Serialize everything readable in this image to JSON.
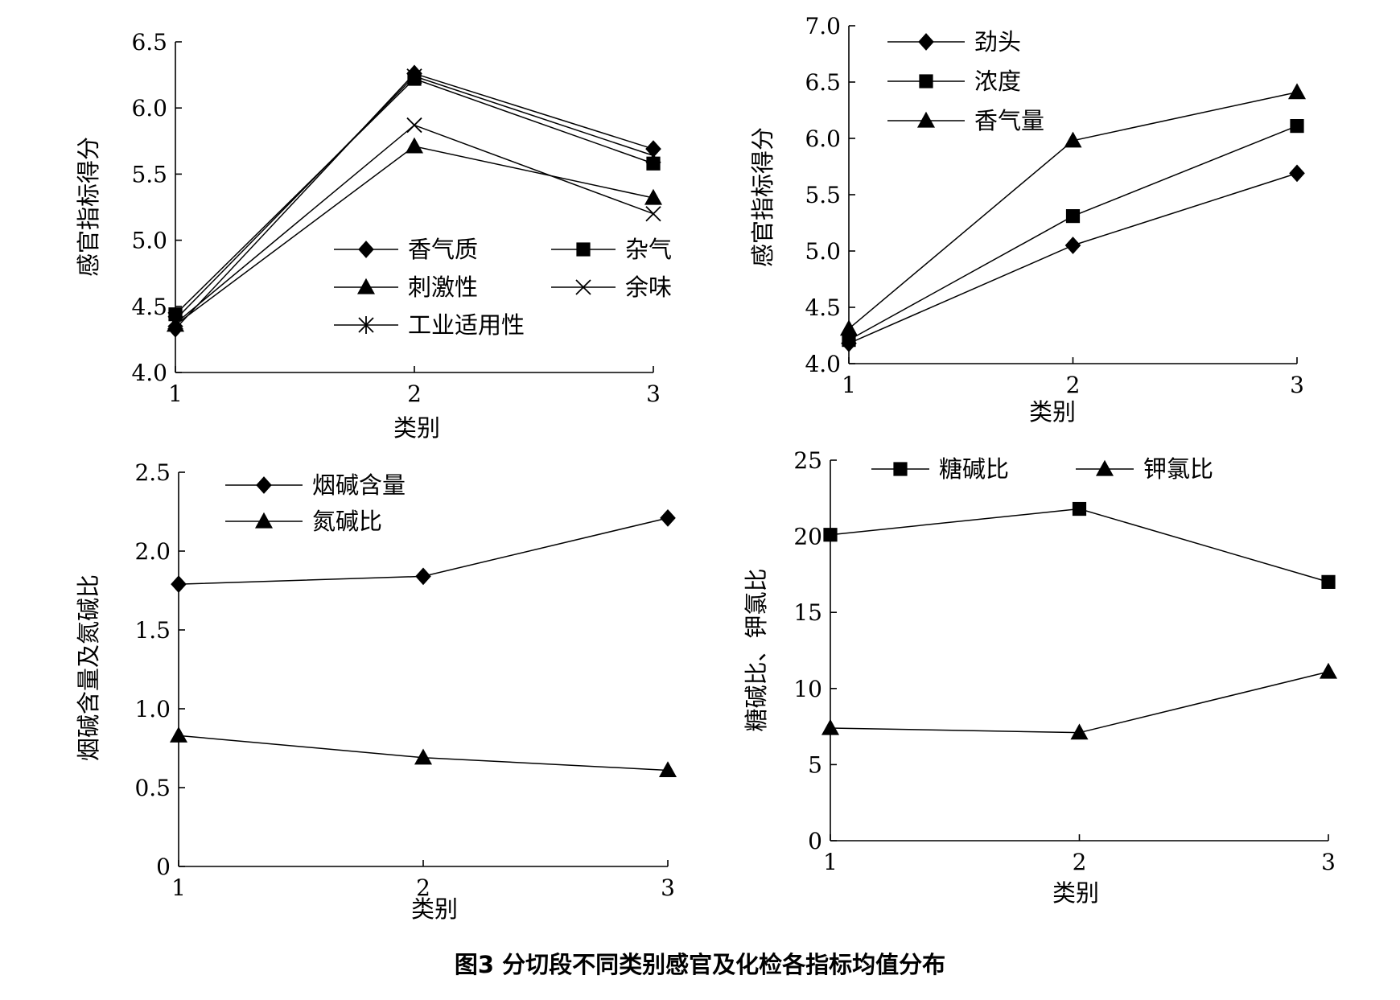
{
  "figure": {
    "caption": "图3   分切段不同类别感官及化检各指标均值分布"
  },
  "chart_data": [
    {
      "type": "line",
      "xlabel": "类别",
      "ylabel": "感官指标得分",
      "x": [
        1,
        2,
        3
      ],
      "xticks": [
        "1",
        "2",
        "3"
      ],
      "ylim": [
        4.0,
        6.5
      ],
      "yticks": [
        "4.0",
        "4.5",
        "5.0",
        "5.5",
        "6.0",
        "6.5"
      ],
      "legend_position": "lower-right",
      "series": [
        {
          "name": "香气质",
          "marker": "diamond",
          "values": [
            4.33,
            6.26,
            5.69
          ]
        },
        {
          "name": "杂气",
          "marker": "square",
          "values": [
            4.44,
            6.22,
            5.58
          ]
        },
        {
          "name": "刺激性",
          "marker": "triangle",
          "values": [
            4.36,
            5.71,
            5.32
          ]
        },
        {
          "name": "余味",
          "marker": "cross",
          "values": [
            4.37,
            5.87,
            5.2
          ]
        },
        {
          "name": "工业适用性",
          "marker": "star",
          "values": [
            4.4,
            6.24,
            5.64
          ]
        }
      ]
    },
    {
      "type": "line",
      "xlabel": "类别",
      "ylabel": "感官指标得分",
      "x": [
        1,
        2,
        3
      ],
      "xticks": [
        "1",
        "2",
        "3"
      ],
      "ylim": [
        4.0,
        7.0
      ],
      "yticks": [
        "4.0",
        "4.5",
        "5.0",
        "5.5",
        "6.0",
        "6.5",
        "7.0"
      ],
      "legend_position": "top-left",
      "series": [
        {
          "name": "劲头",
          "marker": "diamond",
          "values": [
            4.18,
            5.05,
            5.69
          ]
        },
        {
          "name": "浓度",
          "marker": "square",
          "values": [
            4.21,
            5.31,
            6.11
          ]
        },
        {
          "name": "香气量",
          "marker": "triangle",
          "values": [
            4.31,
            5.98,
            6.41
          ]
        }
      ]
    },
    {
      "type": "line",
      "xlabel": "类别",
      "ylabel": "烟碱含量及氮碱比",
      "x": [
        1,
        2,
        3
      ],
      "xticks": [
        "1",
        "2",
        "3"
      ],
      "ylim": [
        0,
        2.5
      ],
      "yticks": [
        "0",
        "0.5",
        "1.0",
        "1.5",
        "2.0",
        "2.5"
      ],
      "legend_position": "top-left",
      "series": [
        {
          "name": "烟碱含量",
          "marker": "diamond",
          "values": [
            1.79,
            1.84,
            2.21
          ]
        },
        {
          "name": "氮碱比",
          "marker": "triangle",
          "values": [
            0.83,
            0.69,
            0.61
          ]
        }
      ]
    },
    {
      "type": "line",
      "xlabel": "类别",
      "ylabel": "糖碱比、钾氯比",
      "x": [
        1,
        2,
        3
      ],
      "xticks": [
        "1",
        "2",
        "3"
      ],
      "ylim": [
        0,
        25
      ],
      "yticks": [
        "0",
        "5",
        "10",
        "15",
        "20",
        "25"
      ],
      "legend_position": "top",
      "series": [
        {
          "name": "糖碱比",
          "marker": "square",
          "values": [
            20.1,
            21.8,
            17.0
          ]
        },
        {
          "name": "钾氯比",
          "marker": "triangle",
          "values": [
            7.4,
            7.1,
            11.1
          ]
        }
      ]
    }
  ]
}
